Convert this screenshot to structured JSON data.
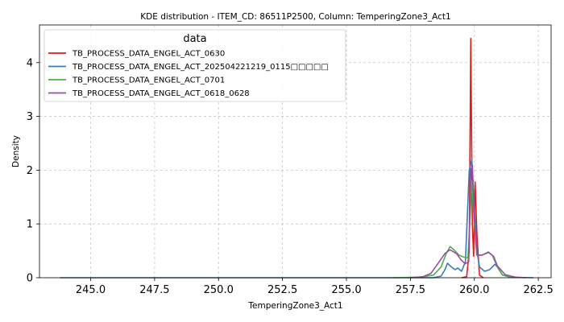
{
  "chart_data": {
    "type": "line",
    "title": "KDE distribution - ITEM_CD: 86511P2500, Column: TemperingZone3_Act1",
    "xlabel": "TemperingZone3_Act1",
    "ylabel": "Density",
    "xlim": [
      243.0,
      263.0
    ],
    "ylim": [
      0,
      4.7
    ],
    "xticks": [
      245.0,
      247.5,
      250.0,
      252.5,
      255.0,
      257.5,
      260.0,
      262.5
    ],
    "xtick_labels": [
      "245.0",
      "247.5",
      "250.0",
      "252.5",
      "255.0",
      "257.5",
      "260.0",
      "262.5"
    ],
    "yticks": [
      0,
      1,
      2,
      3,
      4
    ],
    "ytick_labels": [
      "0",
      "1",
      "2",
      "3",
      "4"
    ],
    "grid": true,
    "legend": {
      "title": "data",
      "position": "top-left"
    },
    "series": [
      {
        "name": "TB_PROCESS_DATA_ENGEL_ACT_0630",
        "color": "#e41a1c",
        "points": [
          [
            259.5,
            0
          ],
          [
            259.7,
            0.02
          ],
          [
            259.8,
            0.5
          ],
          [
            259.86,
            4.45
          ],
          [
            259.92,
            1.0
          ],
          [
            259.97,
            0.4
          ],
          [
            260.03,
            1.78
          ],
          [
            260.1,
            0.8
          ],
          [
            260.2,
            0.05
          ],
          [
            260.35,
            0
          ]
        ]
      },
      {
        "name": "TB_PROCESS_DATA_ENGEL_ACT_202504221219_0115□□□□□",
        "color": "#377eb8",
        "points": [
          [
            243.8,
            0
          ],
          [
            257.0,
            0
          ],
          [
            258.4,
            0
          ],
          [
            258.7,
            0.03
          ],
          [
            258.85,
            0.15
          ],
          [
            258.95,
            0.27
          ],
          [
            259.1,
            0.2
          ],
          [
            259.25,
            0.15
          ],
          [
            259.35,
            0.18
          ],
          [
            259.5,
            0.12
          ],
          [
            259.65,
            0.3
          ],
          [
            259.8,
            2.0
          ],
          [
            259.9,
            2.2
          ],
          [
            260.0,
            1.3
          ],
          [
            260.1,
            0.5
          ],
          [
            260.2,
            0.2
          ],
          [
            260.4,
            0.12
          ],
          [
            260.6,
            0.15
          ],
          [
            260.8,
            0.25
          ],
          [
            260.9,
            0.2
          ],
          [
            261.1,
            0.05
          ],
          [
            261.4,
            0.01
          ],
          [
            262.3,
            0
          ]
        ]
      },
      {
        "name": "TB_PROCESS_DATA_ENGEL_ACT_0701",
        "color": "#4daf4a",
        "points": [
          [
            256.8,
            0
          ],
          [
            257.9,
            0.01
          ],
          [
            258.4,
            0.05
          ],
          [
            258.7,
            0.2
          ],
          [
            258.9,
            0.45
          ],
          [
            259.05,
            0.58
          ],
          [
            259.2,
            0.52
          ],
          [
            259.4,
            0.42
          ],
          [
            259.6,
            0.38
          ],
          [
            259.75,
            0.37
          ],
          [
            259.82,
            1.0
          ],
          [
            259.9,
            1.8
          ],
          [
            260.0,
            1.0
          ],
          [
            260.1,
            0.42
          ],
          [
            260.3,
            0.42
          ],
          [
            260.55,
            0.48
          ],
          [
            260.7,
            0.42
          ],
          [
            260.9,
            0.2
          ],
          [
            261.1,
            0.05
          ],
          [
            261.5,
            0
          ]
        ]
      },
      {
        "name": "TB_PROCESS_DATA_ENGEL_ACT_0618_0628",
        "color": "#984ea3",
        "points": [
          [
            257.5,
            0
          ],
          [
            258.0,
            0.02
          ],
          [
            258.3,
            0.08
          ],
          [
            258.6,
            0.28
          ],
          [
            258.85,
            0.45
          ],
          [
            259.05,
            0.52
          ],
          [
            259.3,
            0.45
          ],
          [
            259.5,
            0.32
          ],
          [
            259.65,
            0.26
          ],
          [
            259.78,
            0.3
          ],
          [
            259.86,
            2.0
          ],
          [
            259.92,
            2.1
          ],
          [
            260.0,
            1.1
          ],
          [
            260.1,
            0.42
          ],
          [
            260.3,
            0.42
          ],
          [
            260.55,
            0.47
          ],
          [
            260.75,
            0.4
          ],
          [
            260.9,
            0.22
          ],
          [
            261.2,
            0.06
          ],
          [
            261.6,
            0.01
          ],
          [
            262.0,
            0
          ]
        ]
      }
    ]
  }
}
